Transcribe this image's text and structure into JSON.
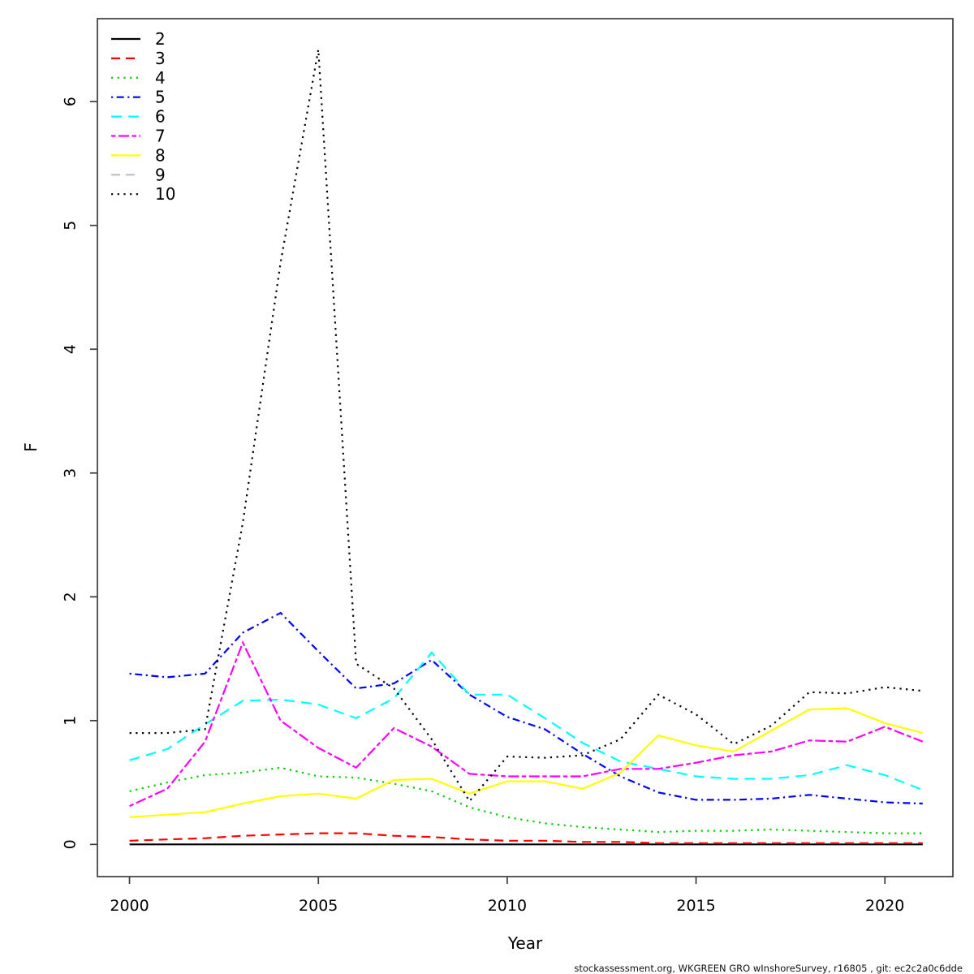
{
  "figure": {
    "footer": "stockassessment.org, WKGREEN GRO wInshoreSurvey, r16805 , git: ec2c2a0c6dde"
  },
  "chart_data": {
    "type": "line",
    "title": "",
    "xlabel": "Year",
    "ylabel": "F",
    "grid": false,
    "legend_position": "top-left",
    "legend_entries": [
      "2",
      "3",
      "4",
      "5",
      "6",
      "7",
      "8",
      "9",
      "10"
    ],
    "x": [
      2000,
      2001,
      2002,
      2003,
      2004,
      2005,
      2006,
      2007,
      2008,
      2009,
      2010,
      2011,
      2012,
      2013,
      2014,
      2015,
      2016,
      2017,
      2018,
      2019,
      2020,
      2021
    ],
    "xlim": [
      1999.15,
      2021.8
    ],
    "ylim": [
      -0.26,
      6.67
    ],
    "x_ticks": [
      2000,
      2005,
      2010,
      2015,
      2020
    ],
    "y_ticks": [
      0,
      1,
      2,
      3,
      4,
      5,
      6
    ],
    "series": [
      {
        "name": "2",
        "color": "#000000",
        "linetype": "solid",
        "values": [
          0,
          0,
          0,
          0,
          0,
          0,
          0,
          0,
          0,
          0,
          0,
          0,
          0,
          0,
          0,
          0,
          0,
          0,
          0,
          0,
          0,
          0
        ]
      },
      {
        "name": "3",
        "color": "#FF0000",
        "linetype": "dashed",
        "values": [
          0.03,
          0.04,
          0.05,
          0.07,
          0.08,
          0.09,
          0.09,
          0.07,
          0.06,
          0.04,
          0.03,
          0.03,
          0.02,
          0.02,
          0.01,
          0.01,
          0.01,
          0.01,
          0.01,
          0.01,
          0.01,
          0.01
        ]
      },
      {
        "name": "4",
        "color": "#00CD00",
        "linetype": "dotted",
        "values": [
          0.43,
          0.5,
          0.56,
          0.58,
          0.62,
          0.55,
          0.54,
          0.49,
          0.43,
          0.3,
          0.22,
          0.17,
          0.14,
          0.12,
          0.1,
          0.11,
          0.11,
          0.12,
          0.11,
          0.1,
          0.09,
          0.09
        ]
      },
      {
        "name": "5",
        "color": "#0000FF",
        "linetype": "dotdash",
        "values": [
          1.38,
          1.35,
          1.38,
          1.71,
          1.87,
          1.56,
          1.26,
          1.3,
          1.49,
          1.21,
          1.03,
          0.93,
          0.73,
          0.55,
          0.42,
          0.36,
          0.36,
          0.37,
          0.4,
          0.37,
          0.34,
          0.33
        ]
      },
      {
        "name": "6",
        "color": "#00FFFF",
        "linetype": "longdash",
        "values": [
          0.68,
          0.77,
          0.97,
          1.16,
          1.17,
          1.13,
          1.02,
          1.18,
          1.55,
          1.21,
          1.21,
          1.02,
          0.82,
          0.67,
          0.61,
          0.55,
          0.53,
          0.53,
          0.56,
          0.64,
          0.56,
          0.44
        ]
      },
      {
        "name": "7",
        "color": "#FF00FF",
        "linetype": "twodash",
        "values": [
          0.31,
          0.45,
          0.83,
          1.63,
          1.0,
          0.78,
          0.62,
          0.94,
          0.79,
          0.57,
          0.55,
          0.55,
          0.55,
          0.61,
          0.61,
          0.66,
          0.72,
          0.75,
          0.84,
          0.83,
          0.95,
          0.83
        ]
      },
      {
        "name": "8",
        "color": "#FFFF00",
        "linetype": "solid",
        "values": [
          0.22,
          0.24,
          0.26,
          0.33,
          0.39,
          0.41,
          0.37,
          0.52,
          0.53,
          0.41,
          0.51,
          0.51,
          0.45,
          0.58,
          0.88,
          0.8,
          0.75,
          0.92,
          1.09,
          1.1,
          0.98,
          0.9
        ]
      },
      {
        "name": "9",
        "color": "#BEBEBE",
        "linetype": "dashed",
        "values": []
      },
      {
        "name": "10",
        "color": "#000000",
        "linetype": "dotted",
        "values": [
          0.9,
          0.9,
          0.93,
          2.6,
          4.7,
          6.42,
          1.46,
          1.26,
          0.85,
          0.35,
          0.71,
          0.7,
          0.72,
          0.85,
          1.21,
          1.05,
          0.81,
          0.96,
          1.23,
          1.22,
          1.27,
          1.24
        ]
      }
    ]
  }
}
